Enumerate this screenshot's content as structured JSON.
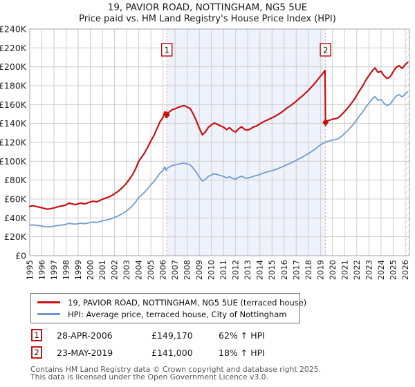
{
  "title": {
    "line1": "19, PAVIOR ROAD, NOTTINGHAM, NG5 5UE",
    "line2": "Price paid vs. HM Land Registry's House Price Index (HPI)"
  },
  "legend": {
    "items": [
      {
        "label": "19, PAVIOR ROAD, NOTTINGHAM, NG5 5UE (terraced house)",
        "color": "#c81010"
      },
      {
        "label": "HPI: Average price, terraced house, City of Nottingham",
        "color": "#6e9bcf"
      }
    ]
  },
  "annotations": {
    "rows": [
      {
        "num": "1",
        "date": "28-APR-2006",
        "price": "£149,170",
        "hpi": "62% ↑ HPI"
      },
      {
        "num": "2",
        "date": "23-MAY-2019",
        "price": "£141,000",
        "hpi": "18% ↑ HPI"
      }
    ]
  },
  "footer": {
    "line1": "Contains HM Land Registry data © Crown copyright and database right 2025.",
    "line2": "This data is licensed under the Open Government Licence v3.0."
  },
  "chart_data": {
    "type": "line",
    "title": "19, PAVIOR ROAD, NOTTINGHAM, NG5 5UE — Price paid vs. HPI",
    "unit": "GBP thousands",
    "ylim": [
      0,
      240
    ],
    "y_tick_step": 20,
    "y_tick_labels": [
      "£0",
      "£20K",
      "£40K",
      "£60K",
      "£80K",
      "£100K",
      "£120K",
      "£140K",
      "£160K",
      "£180K",
      "£200K",
      "£220K",
      "£240K"
    ],
    "x_domain": [
      1995,
      2026.35
    ],
    "x_ticks": [
      1995,
      1996,
      1997,
      1998,
      1999,
      2000,
      2001,
      2002,
      2003,
      2004,
      2005,
      2006,
      2007,
      2008,
      2009,
      2010,
      2011,
      2012,
      2013,
      2014,
      2015,
      2016,
      2017,
      2018,
      2019,
      2020,
      2021,
      2022,
      2023,
      2024,
      2025,
      2026
    ],
    "grid": true,
    "colors": {
      "gridline": "#cccccc",
      "plot_border": "#a0a0a8",
      "shade": "#eef2fb",
      "sale_line": "#f29090",
      "hatch": "#b9b9c0",
      "tick_text": "#222222"
    },
    "shaded_region": {
      "from": 2006.32,
      "to": 2019.39
    },
    "hatch_region": {
      "from": 2026,
      "to": 2026.35
    },
    "sale_markers": [
      {
        "label": "1",
        "year": 2006.32,
        "value_k": 149.17
      },
      {
        "label": "2",
        "year": 2019.42,
        "value_k": 141.0
      }
    ],
    "series": [
      {
        "name": "HPI: Average price, terraced house, City of Nottingham",
        "color": "#6e9bcf",
        "width": 1.8,
        "points": [
          [
            1995.0,
            32.3
          ],
          [
            1995.25,
            32.6
          ],
          [
            1995.5,
            32.2
          ],
          [
            1995.75,
            31.8
          ],
          [
            1996.0,
            31.3
          ],
          [
            1996.25,
            30.8
          ],
          [
            1996.5,
            30.4
          ],
          [
            1996.75,
            30.8
          ],
          [
            1997.0,
            31.2
          ],
          [
            1997.25,
            31.8
          ],
          [
            1997.5,
            32.3
          ],
          [
            1997.75,
            32.6
          ],
          [
            1998.0,
            33.2
          ],
          [
            1998.25,
            34.3
          ],
          [
            1998.5,
            33.8
          ],
          [
            1998.75,
            33.4
          ],
          [
            1999.0,
            33.9
          ],
          [
            1999.25,
            34.4
          ],
          [
            1999.5,
            33.9
          ],
          [
            1999.75,
            34.4
          ],
          [
            2000.0,
            35.1
          ],
          [
            2000.25,
            35.6
          ],
          [
            2000.5,
            35.2
          ],
          [
            2000.75,
            35.9
          ],
          [
            2001.0,
            36.9
          ],
          [
            2001.25,
            37.6
          ],
          [
            2001.5,
            38.3
          ],
          [
            2001.75,
            39.2
          ],
          [
            2002.0,
            40.5
          ],
          [
            2002.25,
            41.8
          ],
          [
            2002.5,
            43.4
          ],
          [
            2002.75,
            45.3
          ],
          [
            2003.0,
            47.5
          ],
          [
            2003.25,
            50.2
          ],
          [
            2003.5,
            53.2
          ],
          [
            2003.75,
            57.0
          ],
          [
            2004.0,
            61.7
          ],
          [
            2004.25,
            64.5
          ],
          [
            2004.5,
            67.5
          ],
          [
            2004.75,
            71.0
          ],
          [
            2005.0,
            75.0
          ],
          [
            2005.25,
            78.5
          ],
          [
            2005.5,
            83.0
          ],
          [
            2005.75,
            87.5
          ],
          [
            2006.0,
            90.3
          ],
          [
            2006.15,
            94.1
          ],
          [
            2006.25,
            90.4
          ],
          [
            2006.32,
            92.1
          ],
          [
            2006.5,
            93.8
          ],
          [
            2006.75,
            95.4
          ],
          [
            2007.0,
            96.0
          ],
          [
            2007.25,
            96.9
          ],
          [
            2007.5,
            97.7
          ],
          [
            2007.75,
            98.0
          ],
          [
            2008.0,
            97.2
          ],
          [
            2008.25,
            96.2
          ],
          [
            2008.5,
            92.6
          ],
          [
            2008.75,
            88.3
          ],
          [
            2009.0,
            83.3
          ],
          [
            2009.25,
            79.0
          ],
          [
            2009.5,
            80.9
          ],
          [
            2009.75,
            84.0
          ],
          [
            2010.0,
            85.5
          ],
          [
            2010.25,
            86.7
          ],
          [
            2010.5,
            85.8
          ],
          [
            2010.75,
            84.9
          ],
          [
            2011.0,
            84.0
          ],
          [
            2011.25,
            82.4
          ],
          [
            2011.5,
            83.6
          ],
          [
            2011.75,
            81.8
          ],
          [
            2012.0,
            80.9
          ],
          [
            2012.25,
            83.0
          ],
          [
            2012.5,
            84.3
          ],
          [
            2012.75,
            82.4
          ],
          [
            2013.0,
            82.1
          ],
          [
            2013.25,
            83.0
          ],
          [
            2013.5,
            84.3
          ],
          [
            2013.75,
            84.9
          ],
          [
            2014.0,
            86.1
          ],
          [
            2014.25,
            87.3
          ],
          [
            2014.5,
            88.3
          ],
          [
            2014.75,
            89.2
          ],
          [
            2015.0,
            90.1
          ],
          [
            2015.25,
            91.0
          ],
          [
            2015.5,
            92.3
          ],
          [
            2015.75,
            93.5
          ],
          [
            2016.0,
            95.1
          ],
          [
            2016.25,
            96.6
          ],
          [
            2016.5,
            97.8
          ],
          [
            2016.75,
            99.4
          ],
          [
            2017.0,
            100.9
          ],
          [
            2017.25,
            102.8
          ],
          [
            2017.5,
            104.3
          ],
          [
            2017.75,
            106.2
          ],
          [
            2018.0,
            108.0
          ],
          [
            2018.25,
            110.2
          ],
          [
            2018.5,
            112.3
          ],
          [
            2018.75,
            114.8
          ],
          [
            2019.0,
            117.3
          ],
          [
            2019.2,
            119.0
          ],
          [
            2019.39,
            120.2
          ],
          [
            2019.5,
            120.7
          ],
          [
            2019.75,
            121.5
          ],
          [
            2020.0,
            122.5
          ],
          [
            2020.25,
            123.0
          ],
          [
            2020.5,
            124.0
          ],
          [
            2020.75,
            126.5
          ],
          [
            2021.0,
            129.5
          ],
          [
            2021.25,
            132.5
          ],
          [
            2021.5,
            136.0
          ],
          [
            2021.75,
            139.5
          ],
          [
            2022.0,
            144.0
          ],
          [
            2022.25,
            148.5
          ],
          [
            2022.5,
            152.5
          ],
          [
            2022.75,
            157.5
          ],
          [
            2023.0,
            161.5
          ],
          [
            2023.25,
            165.5
          ],
          [
            2023.5,
            168.5
          ],
          [
            2023.75,
            164.5
          ],
          [
            2024.0,
            165.5
          ],
          [
            2024.25,
            161.5
          ],
          [
            2024.5,
            159.0
          ],
          [
            2024.75,
            160.5
          ],
          [
            2025.0,
            165.0
          ],
          [
            2025.25,
            169.0
          ],
          [
            2025.5,
            170.5
          ],
          [
            2025.75,
            168.0
          ],
          [
            2026.0,
            171.5
          ],
          [
            2026.2,
            173.5
          ]
        ]
      },
      {
        "name": "19, PAVIOR ROAD, NOTTINGHAM, NG5 5UE (terraced house)",
        "color": "#c81010",
        "width": 2.2,
        "points": [
          [
            1995.0,
            52.3
          ],
          [
            1995.25,
            52.8
          ],
          [
            1995.5,
            52.2
          ],
          [
            1995.75,
            51.5
          ],
          [
            1996.0,
            50.7
          ],
          [
            1996.25,
            49.9
          ],
          [
            1996.5,
            49.2
          ],
          [
            1996.75,
            49.9
          ],
          [
            1997.0,
            50.5
          ],
          [
            1997.25,
            51.5
          ],
          [
            1997.5,
            52.3
          ],
          [
            1997.75,
            52.8
          ],
          [
            1998.0,
            53.8
          ],
          [
            1998.25,
            55.6
          ],
          [
            1998.5,
            54.8
          ],
          [
            1998.75,
            54.1
          ],
          [
            1999.0,
            54.9
          ],
          [
            1999.25,
            55.7
          ],
          [
            1999.5,
            54.9
          ],
          [
            1999.75,
            55.7
          ],
          [
            2000.0,
            56.9
          ],
          [
            2000.25,
            57.7
          ],
          [
            2000.5,
            57.0
          ],
          [
            2000.75,
            58.2
          ],
          [
            2001.0,
            59.8
          ],
          [
            2001.25,
            60.9
          ],
          [
            2001.5,
            62.0
          ],
          [
            2001.75,
            63.5
          ],
          [
            2002.0,
            65.6
          ],
          [
            2002.25,
            67.7
          ],
          [
            2002.5,
            70.3
          ],
          [
            2002.75,
            73.4
          ],
          [
            2003.0,
            77.0
          ],
          [
            2003.25,
            81.3
          ],
          [
            2003.5,
            86.2
          ],
          [
            2003.75,
            92.3
          ],
          [
            2004.0,
            100.0
          ],
          [
            2004.25,
            104.5
          ],
          [
            2004.5,
            109.4
          ],
          [
            2004.75,
            115.0
          ],
          [
            2005.0,
            121.5
          ],
          [
            2005.25,
            127.2
          ],
          [
            2005.5,
            134.5
          ],
          [
            2005.75,
            141.8
          ],
          [
            2006.0,
            146.3
          ],
          [
            2006.15,
            152.4
          ],
          [
            2006.25,
            146.4
          ],
          [
            2006.32,
            149.2
          ],
          [
            2006.5,
            152.0
          ],
          [
            2006.75,
            154.5
          ],
          [
            2007.0,
            155.5
          ],
          [
            2007.25,
            157.0
          ],
          [
            2007.5,
            158.2
          ],
          [
            2007.75,
            158.8
          ],
          [
            2008.0,
            157.5
          ],
          [
            2008.25,
            155.8
          ],
          [
            2008.5,
            150.0
          ],
          [
            2008.75,
            143.0
          ],
          [
            2009.0,
            135.0
          ],
          [
            2009.25,
            128.0
          ],
          [
            2009.5,
            131.0
          ],
          [
            2009.75,
            136.0
          ],
          [
            2010.0,
            138.5
          ],
          [
            2010.25,
            140.5
          ],
          [
            2010.5,
            139.0
          ],
          [
            2010.75,
            137.5
          ],
          [
            2011.0,
            136.0
          ],
          [
            2011.25,
            133.5
          ],
          [
            2011.5,
            135.5
          ],
          [
            2011.75,
            132.5
          ],
          [
            2012.0,
            131.0
          ],
          [
            2012.25,
            134.5
          ],
          [
            2012.5,
            136.5
          ],
          [
            2012.75,
            133.5
          ],
          [
            2013.0,
            133.0
          ],
          [
            2013.25,
            134.5
          ],
          [
            2013.5,
            136.5
          ],
          [
            2013.75,
            137.5
          ],
          [
            2014.0,
            139.5
          ],
          [
            2014.25,
            141.5
          ],
          [
            2014.5,
            143.0
          ],
          [
            2014.75,
            144.5
          ],
          [
            2015.0,
            146.0
          ],
          [
            2015.25,
            147.5
          ],
          [
            2015.5,
            149.5
          ],
          [
            2015.75,
            151.5
          ],
          [
            2016.0,
            154.0
          ],
          [
            2016.25,
            156.5
          ],
          [
            2016.5,
            158.5
          ],
          [
            2016.75,
            161.0
          ],
          [
            2017.0,
            163.5
          ],
          [
            2017.25,
            166.5
          ],
          [
            2017.5,
            169.0
          ],
          [
            2017.75,
            172.0
          ],
          [
            2018.0,
            175.0
          ],
          [
            2018.25,
            178.5
          ],
          [
            2018.5,
            182.0
          ],
          [
            2018.75,
            186.0
          ],
          [
            2019.0,
            190.0
          ],
          [
            2019.2,
            193.0
          ],
          [
            2019.38,
            196.0
          ],
          [
            2019.42,
            141.0
          ],
          [
            2019.5,
            142.4
          ],
          [
            2019.75,
            143.4
          ],
          [
            2020.0,
            144.6
          ],
          [
            2020.25,
            145.1
          ],
          [
            2020.5,
            146.3
          ],
          [
            2020.75,
            149.3
          ],
          [
            2021.0,
            152.8
          ],
          [
            2021.25,
            156.4
          ],
          [
            2021.5,
            160.5
          ],
          [
            2021.75,
            164.6
          ],
          [
            2022.0,
            169.9
          ],
          [
            2022.25,
            175.2
          ],
          [
            2022.5,
            180.0
          ],
          [
            2022.75,
            185.9
          ],
          [
            2023.0,
            190.6
          ],
          [
            2023.25,
            195.3
          ],
          [
            2023.5,
            198.8
          ],
          [
            2023.75,
            194.1
          ],
          [
            2024.0,
            195.3
          ],
          [
            2024.25,
            190.6
          ],
          [
            2024.5,
            187.6
          ],
          [
            2024.75,
            189.4
          ],
          [
            2025.0,
            194.7
          ],
          [
            2025.25,
            199.4
          ],
          [
            2025.5,
            201.2
          ],
          [
            2025.75,
            198.2
          ],
          [
            2026.0,
            202.4
          ],
          [
            2026.2,
            204.7
          ]
        ]
      }
    ]
  }
}
